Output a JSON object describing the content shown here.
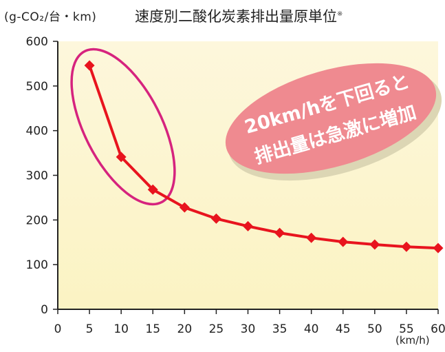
{
  "chart_data": {
    "type": "line",
    "title": "速度別二酸化炭素排出量原単位",
    "title_note": "※",
    "ylabel": "(g-CO₂/台・km)",
    "xlabel": "(km/h)",
    "x": [
      5,
      10,
      15,
      20,
      25,
      30,
      35,
      40,
      45,
      50,
      55,
      60
    ],
    "xticks": [
      0,
      5,
      10,
      15,
      20,
      25,
      30,
      35,
      40,
      45,
      50,
      55,
      60
    ],
    "yticks": [
      0,
      100,
      200,
      300,
      400,
      500,
      600
    ],
    "xlim": [
      0,
      60
    ],
    "ylim": [
      0,
      600
    ],
    "grid": false,
    "series": [
      {
        "values": [
          546,
          341,
          268,
          228,
          203,
          186,
          171,
          160,
          151,
          145,
          140,
          137
        ],
        "color": "#e8141e"
      }
    ],
    "annotation": {
      "line1": "20km/hを下回ると",
      "line2": "排出量は急激に増加",
      "bubble_color": "#ef8a90",
      "highlight_color": "#d6237e"
    },
    "plot_background": [
      "#fdf7dc",
      "#fbf3c3"
    ]
  }
}
